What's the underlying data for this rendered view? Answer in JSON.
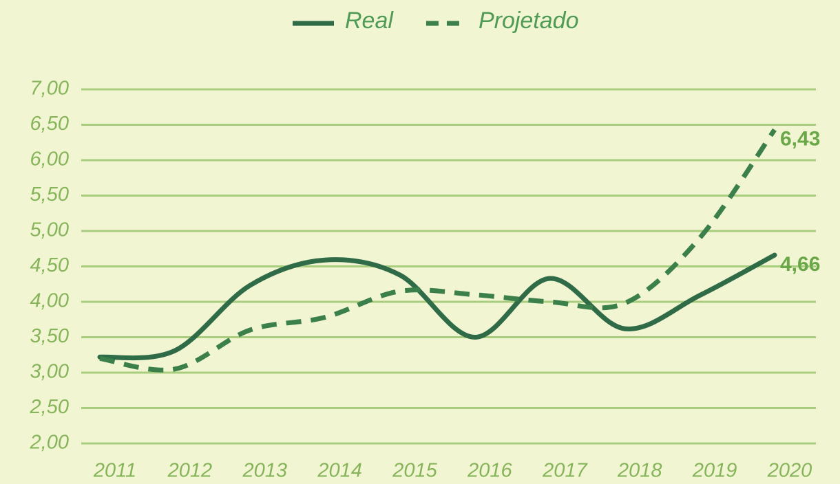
{
  "chart_data": {
    "type": "line",
    "categories": [
      "2011",
      "2012",
      "2013",
      "2014",
      "2015",
      "2016",
      "2017",
      "2018",
      "2019",
      "2020"
    ],
    "series": [
      {
        "name": "Real",
        "color": "#2f6b46",
        "style": "solid",
        "values": [
          3.22,
          3.31,
          4.23,
          4.59,
          4.38,
          3.5,
          4.33,
          3.62,
          4.09,
          4.66
        ],
        "value_labels": [
          null,
          null,
          null,
          null,
          null,
          null,
          null,
          null,
          null,
          "4,66"
        ]
      },
      {
        "name": "Projetado",
        "color": "#3b7f4b",
        "style": "dashed",
        "values": [
          3.2,
          3.05,
          3.6,
          3.78,
          4.15,
          4.1,
          4.0,
          3.98,
          4.9,
          6.43
        ],
        "value_labels": [
          null,
          null,
          null,
          null,
          null,
          null,
          null,
          null,
          null,
          "6,43"
        ]
      }
    ],
    "ylim": [
      2,
      7
    ],
    "yticks": [
      {
        "value": 2,
        "label": "2,00"
      },
      {
        "value": 2.5,
        "label": "2,50"
      },
      {
        "value": 3,
        "label": "3,00"
      },
      {
        "value": 3.5,
        "label": "3,50"
      },
      {
        "value": 4,
        "label": "4,00"
      },
      {
        "value": 4.5,
        "label": "4,50"
      },
      {
        "value": 5,
        "label": "5,00"
      },
      {
        "value": 5.5,
        "label": "5,50"
      },
      {
        "value": 6,
        "label": "6,00"
      },
      {
        "value": 6.5,
        "label": "6,50"
      },
      {
        "value": 7,
        "label": "7,00"
      }
    ],
    "grid": true,
    "grid_color": "#a9cd7f",
    "legend": "top"
  }
}
